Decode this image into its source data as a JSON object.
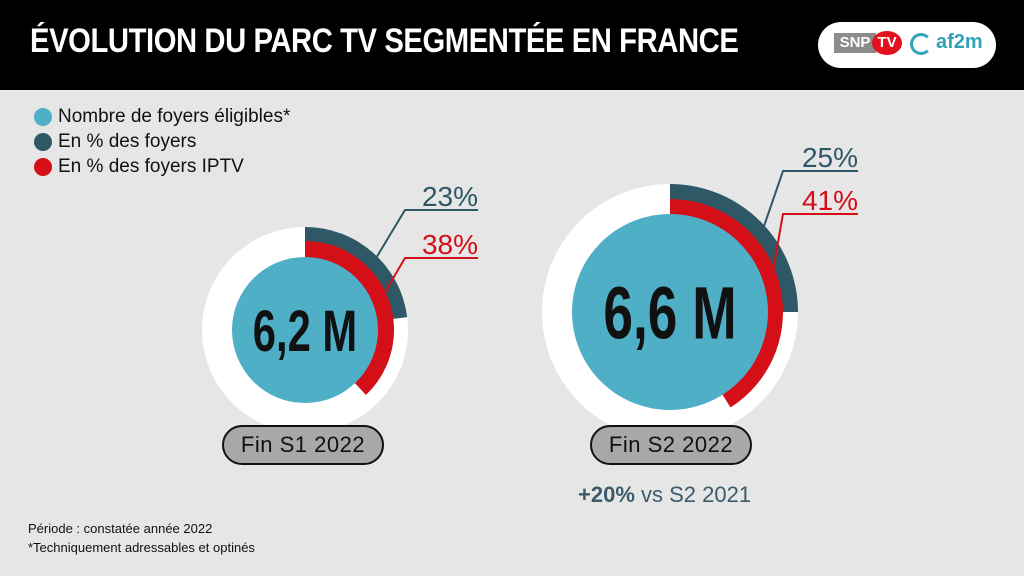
{
  "header": {
    "title": "ÉVOLUTION DU PARC TV SEGMENTÉE EN FRANCE"
  },
  "logos": {
    "snp": "SNP",
    "tv": "TV",
    "af2m": "af2m"
  },
  "legend": [
    {
      "label": "Nombre de foyers éligibles*",
      "color": "#4eafc6"
    },
    {
      "label": "En % des foyers",
      "color": "#2e5866"
    },
    {
      "label": "En % des foyers IPTV",
      "color": "#d40f17"
    }
  ],
  "chart_data": {
    "type": "pie",
    "title": "ÉVOLUTION DU PARC TV SEGMENTÉE EN FRANCE",
    "categories": [
      "Fin S1 2022",
      "Fin S2 2022"
    ],
    "series": [
      {
        "name": "Nombre de foyers éligibles*",
        "values": [
          "6,2 M",
          "6,6 M"
        ],
        "numeric": [
          6.2,
          6.6
        ],
        "unit": "M"
      },
      {
        "name": "En % des foyers",
        "values": [
          23,
          25
        ],
        "labels": [
          "23%",
          "25%"
        ]
      },
      {
        "name": "En % des foyers IPTV",
        "values": [
          38,
          41
        ],
        "labels": [
          "38%",
          "41%"
        ]
      }
    ],
    "colors": {
      "center": "#4eafc6",
      "foyers": "#2e5866",
      "iptv": "#d40f17",
      "ring": "#ffffff"
    },
    "annotation": {
      "prefix": "+20%",
      "text": " vs S2 2021"
    }
  },
  "footnotes": {
    "periode": "Période : constatée année 2022",
    "note": "*Techniquement adressables et optinés"
  }
}
